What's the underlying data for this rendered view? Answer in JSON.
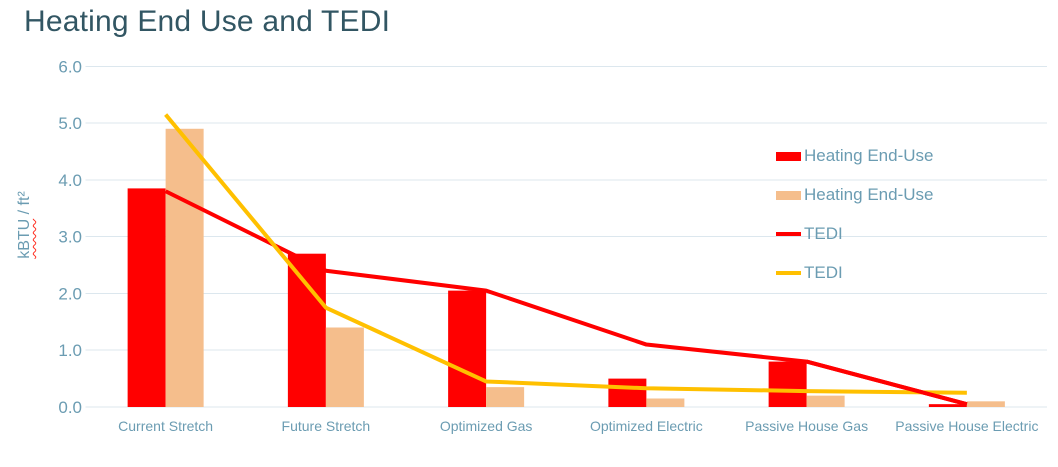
{
  "title": "Heating End Use and TEDI",
  "y_axis": {
    "unit_label": "kBTU / ft²",
    "unit_main": "kBTU",
    "unit_rest": " / ft²",
    "ticks": [
      {
        "label": "6.0",
        "value": 6.0
      },
      {
        "label": "5.0",
        "value": 5.0
      },
      {
        "label": "4.0",
        "value": 4.0
      },
      {
        "label": "3.0",
        "value": 3.0
      },
      {
        "label": "2.0",
        "value": 2.0
      },
      {
        "label": "1.0",
        "value": 1.0
      },
      {
        "label": "0.0",
        "value": 0.0
      }
    ]
  },
  "chart_data": {
    "type": "combo (bar + line)",
    "title": "Heating End Use and TEDI",
    "xlabel": "",
    "ylabel": "kBTU / ft²",
    "ylim": [
      0,
      6
    ],
    "ytick_step": 1.0,
    "grid": true,
    "legend_position": "inside right",
    "categories": [
      "Current Stretch",
      "Future Stretch",
      "Optimized Gas",
      "Optimized Electric",
      "Passive House Gas",
      "Passive House Electric"
    ],
    "series": [
      {
        "key": "heating-red",
        "name": "Heating End-Use",
        "type": "bar",
        "color": "#FF0000",
        "values": [
          3.85,
          2.7,
          2.05,
          0.5,
          0.8,
          0.05
        ]
      },
      {
        "key": "heating-tan",
        "name": "Heating End-Use",
        "type": "bar",
        "color": "#F5BE8C",
        "values": [
          4.9,
          1.4,
          0.35,
          0.15,
          0.2,
          0.1
        ]
      },
      {
        "key": "tedi-red",
        "name": "TEDI",
        "type": "line",
        "color": "#FF0000",
        "values": [
          3.8,
          2.4,
          2.05,
          1.1,
          0.8,
          0.05
        ]
      },
      {
        "key": "tedi-yellow",
        "name": "TEDI",
        "type": "line",
        "color": "#FFC000",
        "values": [
          5.15,
          1.75,
          0.45,
          0.33,
          0.28,
          0.25
        ]
      }
    ]
  },
  "colors": {
    "title": "#325663",
    "axis_text": "#6B9CB2",
    "gridline": "#DCE7EE",
    "bar_red": "#FF0000",
    "bar_tan": "#F5BE8C",
    "line_red": "#FF0000",
    "line_yellow": "#FFC000",
    "squiggle": "#FF2D1F",
    "background": "#FFFFFF"
  }
}
